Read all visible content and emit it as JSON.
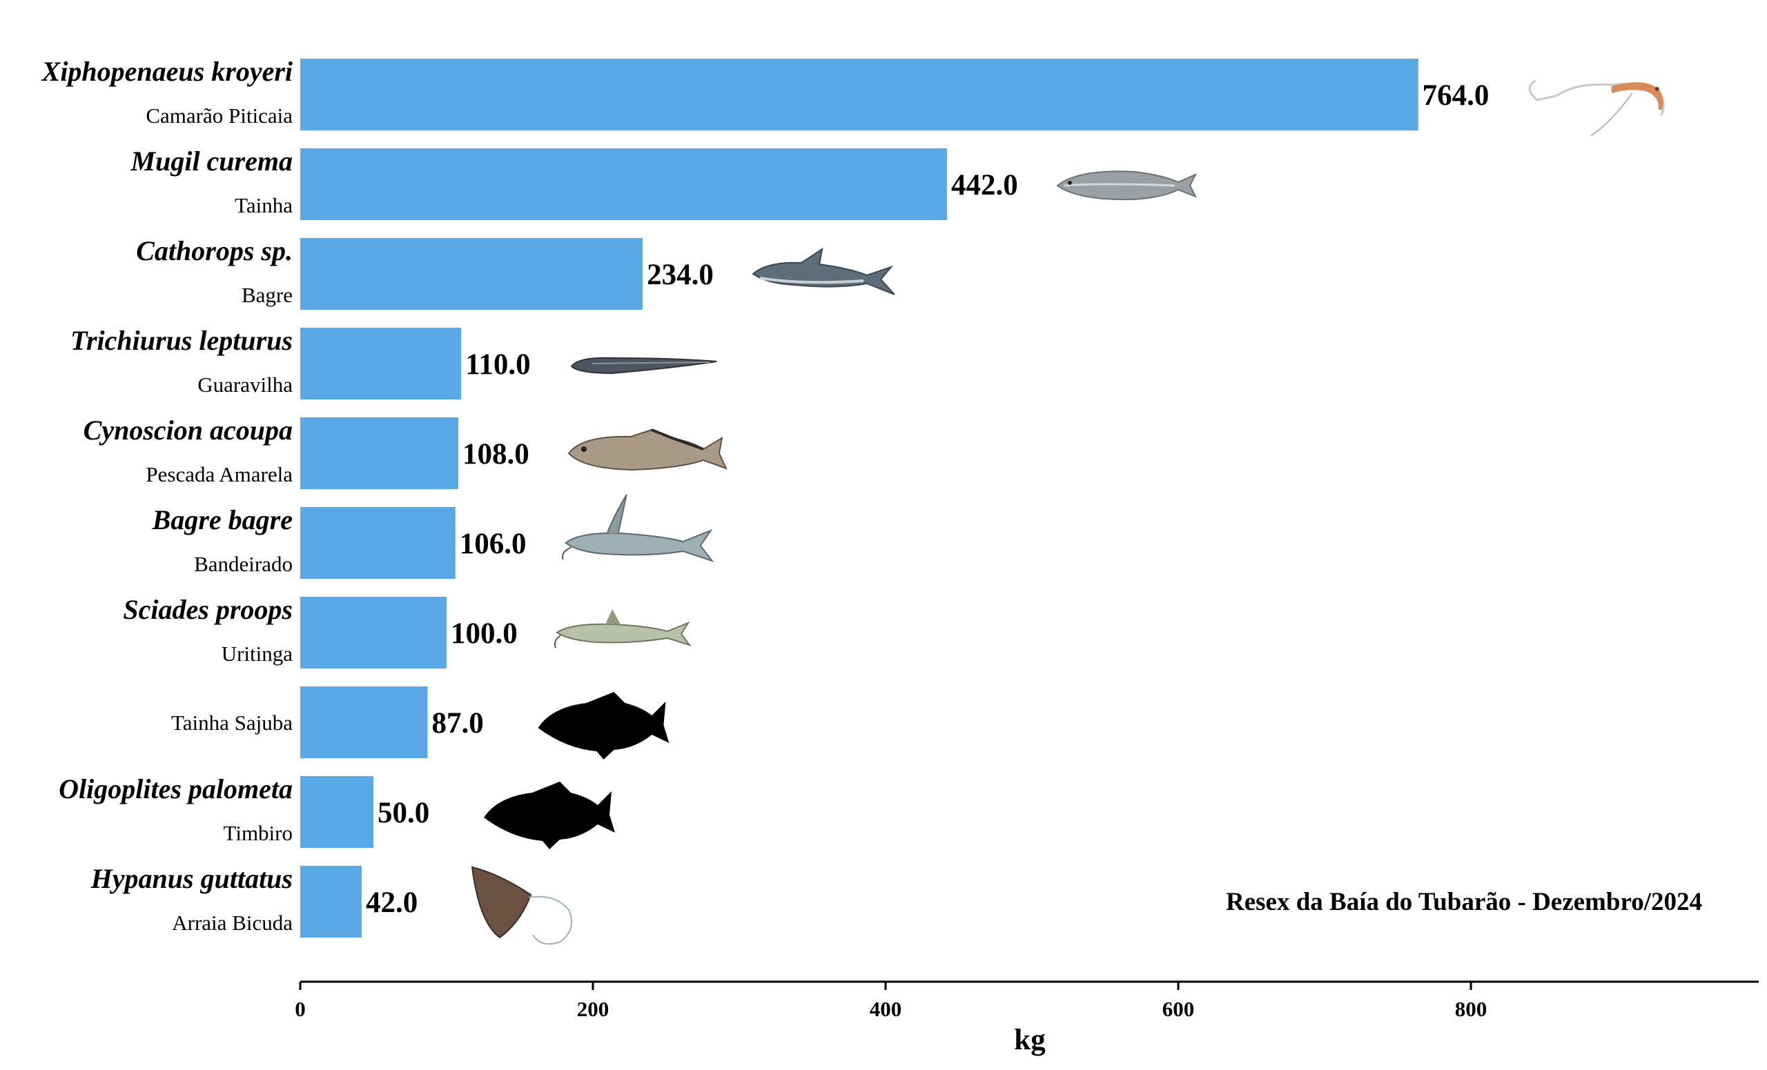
{
  "chart_data": {
    "type": "bar",
    "orientation": "horizontal",
    "xlabel": "kg",
    "xlim": [
      0,
      995
    ],
    "x_ticks": [
      0,
      200,
      400,
      600,
      800
    ],
    "grid": false,
    "bar_color": "#5aa8e6",
    "annotation": "Resex da Baía do Tubarão - Dezembro/2024",
    "categories": [
      {
        "scientific": "Xiphopenaeus kroyeri",
        "common": "Camarão Piticaia",
        "value": 764.0,
        "value_label": "764.0",
        "icon": "shrimp-icon"
      },
      {
        "scientific": "Mugil curema",
        "common": "Tainha",
        "value": 442.0,
        "value_label": "442.0",
        "icon": "mullet-fish-icon"
      },
      {
        "scientific": "Cathorops sp.",
        "common": "Bagre",
        "value": 234.0,
        "value_label": "234.0",
        "icon": "catfish-icon"
      },
      {
        "scientific": "Trichiurus lepturus",
        "common": "Guaravilha",
        "value": 110.0,
        "value_label": "110.0",
        "icon": "cutlassfish-icon"
      },
      {
        "scientific": "Cynoscion acoupa",
        "common": "Pescada Amarela",
        "value": 108.0,
        "value_label": "108.0",
        "icon": "weakfish-icon"
      },
      {
        "scientific": "Bagre bagre",
        "common": "Bandeirado",
        "value": 106.0,
        "value_label": "106.0",
        "icon": "flag-catfish-icon"
      },
      {
        "scientific": "Sciades proops",
        "common": "Uritinga",
        "value": 100.0,
        "value_label": "100.0",
        "icon": "uritinga-catfish-icon"
      },
      {
        "scientific": "",
        "common": "Tainha Sajuba",
        "value": 87.0,
        "value_label": "87.0",
        "icon": "fish-silhouette-icon"
      },
      {
        "scientific": "Oligoplites palometa",
        "common": "Timbiro",
        "value": 50.0,
        "value_label": "50.0",
        "icon": "fish-silhouette-icon"
      },
      {
        "scientific": "Hypanus guttatus",
        "common": "Arraia Bicuda",
        "value": 42.0,
        "value_label": "42.0",
        "icon": "stingray-icon"
      }
    ]
  }
}
